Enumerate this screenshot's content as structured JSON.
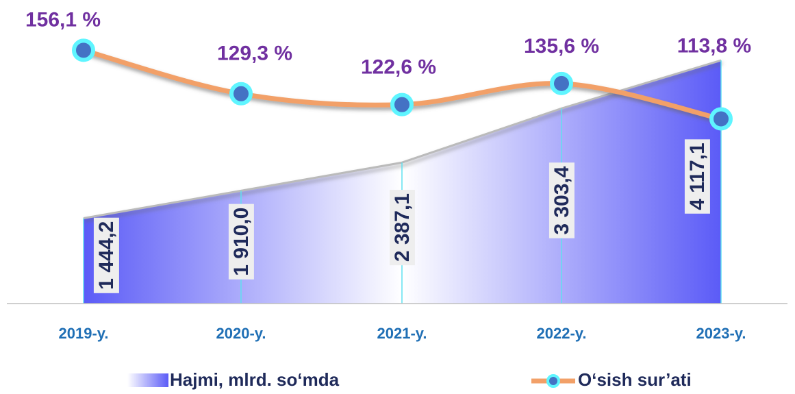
{
  "chart_data": {
    "type": "area+line",
    "categories": [
      "2019-y.",
      "2020-y.",
      "2021-y.",
      "2022-y.",
      "2023-y."
    ],
    "series": [
      {
        "name": "Hajmi, mlrd. so‘mda",
        "type": "area",
        "color": "#5b5bf7",
        "values": [
          1444.2,
          1910.0,
          2387.1,
          3303.4,
          4117.1
        ],
        "value_labels": [
          "1 444,2",
          "1 910,0",
          "2 387,1",
          "3 303,4",
          "4 117,1"
        ]
      },
      {
        "name": "O‘sish sur’ati",
        "type": "line",
        "color": "#f2a068",
        "marker_color": "#4472c4",
        "axis": "y2",
        "values": [
          156.1,
          129.3,
          122.6,
          135.6,
          113.8
        ],
        "value_labels": [
          "156,1 %",
          "129,3 %",
          "122,6 %",
          "135,6 %",
          "113,8 %"
        ]
      }
    ],
    "ylim": [
      0,
      5000
    ],
    "y2lim": [
      0,
      182
    ],
    "legend": "bottom"
  }
}
